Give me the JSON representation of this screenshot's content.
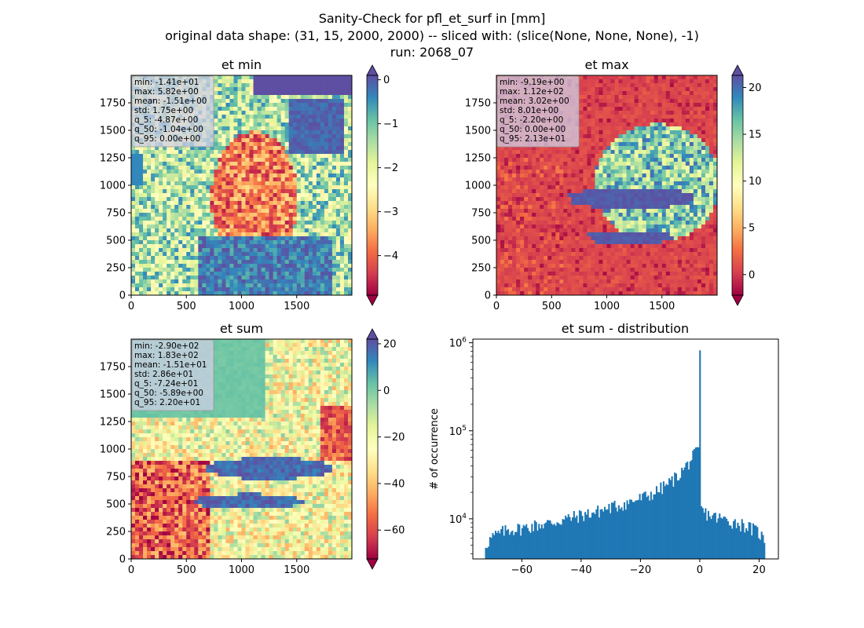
{
  "figure": {
    "title_lines": [
      "Sanity-Check for pfl_et_surf in [mm]",
      "original data shape: (31, 15, 2000, 2000) -- sliced with: (slice(None, None, None), -1)",
      "run: 2068_07"
    ]
  },
  "colors": {
    "spectral": [
      "#9e0142",
      "#d53e4f",
      "#f46d43",
      "#fdae61",
      "#fee08b",
      "#ffffbf",
      "#e6f598",
      "#abdda4",
      "#66c2a5",
      "#3288bd",
      "#5e4fa2"
    ],
    "hist_bar": "#1f77b4",
    "stats_box": "#cfcfe6"
  },
  "chart_data": [
    {
      "type": "heatmap",
      "title": "et min",
      "colormap": "Spectral",
      "xlim": [
        0,
        2000
      ],
      "ylim": [
        0,
        2000
      ],
      "xticks": [
        "0",
        "500",
        "1000",
        "1500"
      ],
      "yticks": [
        "0",
        "250",
        "500",
        "750",
        "1000",
        "1250",
        "1500",
        "1750"
      ],
      "clim": [
        -4.9,
        0.1
      ],
      "cbar_ticks": [
        0,
        -1,
        -2,
        -3,
        -4
      ],
      "cbar_tick_labels": [
        "0",
        "−1",
        "−2",
        "−3",
        "−4"
      ],
      "stats": [
        "min: -1.41e+01",
        "max: 5.82e+00",
        "mean: -1.51e+00",
        "std: 1.75e+00",
        "q_5: -4.87e+00",
        "q_50: -1.04e+00",
        "q_95: 0.00e+00"
      ]
    },
    {
      "type": "heatmap",
      "title": "et max",
      "colormap": "Spectral",
      "xlim": [
        0,
        2000
      ],
      "ylim": [
        0,
        2000
      ],
      "xticks": [
        "0",
        "500",
        "1000",
        "1500"
      ],
      "yticks": [
        "0",
        "250",
        "500",
        "750",
        "1000",
        "1250",
        "1500",
        "1750"
      ],
      "clim": [
        -2.2,
        21.3
      ],
      "cbar_ticks": [
        20,
        15,
        10,
        5,
        0
      ],
      "cbar_tick_labels": [
        "20",
        "15",
        "10",
        "5",
        "0"
      ],
      "stats": [
        "min: -9.19e+00",
        "max: 1.12e+02",
        "mean: 3.02e+00",
        "std: 8.01e+00",
        "q_5: -2.20e+00",
        "q_50: 0.00e+00",
        "q_95: 2.13e+01"
      ]
    },
    {
      "type": "heatmap",
      "title": "et sum",
      "colormap": "Spectral",
      "xlim": [
        0,
        2000
      ],
      "ylim": [
        0,
        2000
      ],
      "xticks": [
        "0",
        "500",
        "1000",
        "1500"
      ],
      "yticks": [
        "0",
        "250",
        "500",
        "750",
        "1000",
        "1250",
        "1500",
        "1750"
      ],
      "clim": [
        -72.4,
        22.0
      ],
      "cbar_ticks": [
        20,
        0,
        -20,
        -40,
        -60
      ],
      "cbar_tick_labels": [
        "20",
        "0",
        "−20",
        "−40",
        "−60"
      ],
      "stats": [
        "min: -2.90e+02",
        "max: 1.83e+02",
        "mean: -1.51e+01",
        "std: 2.86e+01",
        "q_5: -7.24e+01",
        "q_50: -5.89e+00",
        "q_95: 2.20e+01"
      ]
    },
    {
      "type": "bar",
      "subtype": "histogram",
      "title": "et sum - distribution",
      "xlabel": "",
      "ylabel": "# of occurrence",
      "yscale": "log",
      "xlim": [
        -76.5,
        26.5
      ],
      "ylim": [
        3500,
        1100000
      ],
      "xticks": [
        -60,
        -40,
        -20,
        0,
        20
      ],
      "xtick_labels": [
        "−60",
        "−40",
        "−20",
        "0",
        "20"
      ],
      "yticks": [
        10000,
        100000,
        1000000
      ],
      "ytick_base": "10",
      "ytick_exponents": [
        "4",
        "5",
        "6"
      ],
      "x_range": [
        -72.4,
        22.0
      ],
      "bins": 200,
      "shape_points_x": [
        -72.4,
        -70,
        -65,
        -60,
        -55,
        -50,
        -45,
        -40,
        -35,
        -30,
        -25,
        -20,
        -15,
        -10,
        -7,
        -5,
        -3,
        -1.5,
        -0.2,
        0.3,
        1,
        5,
        10,
        15,
        20,
        22
      ],
      "shape_points_y": [
        5000,
        6200,
        7500,
        7800,
        8500,
        9000,
        10000,
        11000,
        12000,
        13500,
        15000,
        17000,
        20000,
        26000,
        32000,
        38000,
        47000,
        55000,
        60000,
        15000,
        12000,
        10500,
        9500,
        8500,
        7000,
        5500
      ],
      "peak": {
        "x": 0,
        "y": 820000
      }
    }
  ]
}
